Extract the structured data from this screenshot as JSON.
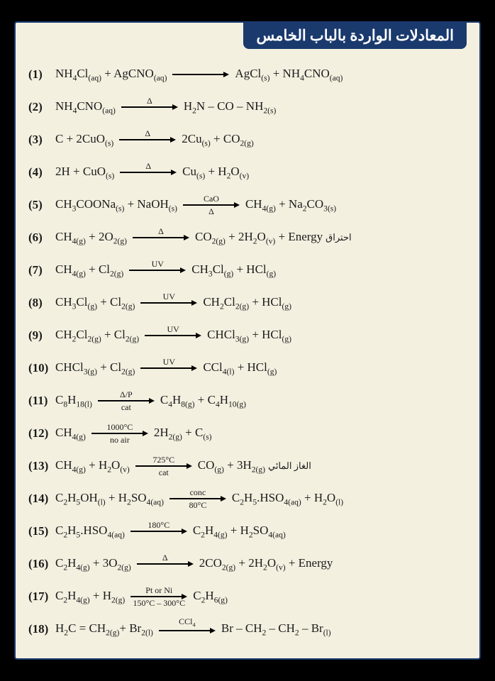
{
  "header": {
    "title": "المعادلات الواردة بالباب الخامس"
  },
  "colors": {
    "page_bg": "#f4f0e0",
    "frame": "#1a3a6e",
    "header_bg": "#1a3a6e",
    "header_fg": "#ffffff",
    "text": "#1a1a1a"
  },
  "equations": [
    {
      "n": "(1)",
      "lhs": "NH<sub>4</sub>Cl<sub>(aq)</sub> + AgCNO<sub>(aq)</sub>",
      "top": "",
      "bot": "",
      "rhs": "AgCl<sub>(s)</sub> + NH<sub>4</sub>CNO<sub>(aq)</sub>"
    },
    {
      "n": "(2)",
      "lhs": "NH<sub>4</sub>CNO<sub>(aq)</sub>",
      "top": "Δ",
      "bot": "",
      "rhs": "H<sub>2</sub>N – CO – NH<sub>2(s)</sub>"
    },
    {
      "n": "(3)",
      "lhs": "C + 2CuO<sub>(s)</sub>",
      "top": "Δ",
      "bot": "",
      "rhs": "2Cu<sub>(s)</sub> + CO<sub>2(g)</sub>"
    },
    {
      "n": "(4)",
      "lhs": "2H + CuO<sub>(s)</sub>",
      "top": "Δ",
      "bot": "",
      "rhs": "Cu<sub>(s)</sub> + H<sub>2</sub>O<sub>(v)</sub>"
    },
    {
      "n": "(5)",
      "lhs": "CH<sub>3</sub>COONa<sub>(s)</sub> + NaOH<sub>(s)</sub>",
      "top": "CaO",
      "bot": "Δ",
      "rhs": "CH<sub>4(g)</sub> + Na<sub>2</sub>CO<sub>3(s)</sub>"
    },
    {
      "n": "(6)",
      "lhs": "CH<sub>4(g)</sub> + 2O<sub>2(g)</sub>",
      "top": "Δ",
      "bot": "",
      "rhs": "CO<sub>2(g)</sub> + 2H<sub>2</sub>O<sub>(v)</sub> + Energy",
      "note": "احتراق"
    },
    {
      "n": "(7)",
      "lhs": "CH<sub>4(g)</sub> + Cl<sub>2(g)</sub>",
      "top": "UV",
      "bot": "",
      "rhs": "CH<sub>3</sub>Cl<sub>(g)</sub> + HCl<sub>(g)</sub>"
    },
    {
      "n": "(8)",
      "lhs": "CH<sub>3</sub>Cl<sub>(g)</sub> + Cl<sub>2(g)</sub>",
      "top": "UV",
      "bot": "",
      "rhs": "CH<sub>2</sub>Cl<sub>2(g)</sub> + HCl<sub>(g)</sub>"
    },
    {
      "n": "(9)",
      "lhs": "CH<sub>2</sub>Cl<sub>2(g)</sub> + Cl<sub>2(g)</sub>",
      "top": "UV",
      "bot": "",
      "rhs": "CHCl<sub>3(g)</sub> + HCl<sub>(g)</sub>"
    },
    {
      "n": "(10)",
      "lhs": "CHCl<sub>3(g)</sub> + Cl<sub>2(g)</sub>",
      "top": "UV",
      "bot": "",
      "rhs": "CCl<sub>4(l)</sub> + HCl<sub>(g)</sub>"
    },
    {
      "n": "(11)",
      "lhs": "C<sub>8</sub>H<sub>18(l)</sub>",
      "top": "Δ/P",
      "bot": "cat",
      "rhs": "C<sub>4</sub>H<sub>8(g)</sub> + C<sub>4</sub>H<sub>10(g)</sub>"
    },
    {
      "n": "(12)",
      "lhs": "CH<sub>4(g)</sub>",
      "top": "1000°C",
      "bot": "no air",
      "rhs": "2H<sub>2(g)</sub> + C<sub>(s)</sub>"
    },
    {
      "n": "(13)",
      "lhs": "CH<sub>4(g)</sub> + H<sub>2</sub>O<sub>(v)</sub>",
      "top": "725°C",
      "bot": "cat",
      "rhs": "CO<sub>(g)</sub> + 3H<sub>2(g)</sub>",
      "note": "الغاز المائي"
    },
    {
      "n": "(14)",
      "lhs": "C<sub>2</sub>H<sub>5</sub>OH<sub>(l)</sub> + H<sub>2</sub>SO<sub>4(aq)</sub>",
      "top": "conc",
      "bot": "80°C",
      "rhs": "C<sub>2</sub>H<sub>5</sub>.HSO<sub>4(aq)</sub> + H<sub>2</sub>O<sub>(l)</sub>"
    },
    {
      "n": "(15)",
      "lhs": "C<sub>2</sub>H<sub>5</sub>.HSO<sub>4(aq)</sub>",
      "top": "180°C",
      "bot": "",
      "rhs": "C<sub>2</sub>H<sub>4(g)</sub> + H<sub>2</sub>SO<sub>4(aq)</sub>"
    },
    {
      "n": "(16)",
      "lhs": "C<sub>2</sub>H<sub>4(g)</sub> + 3O<sub>2(g)</sub>",
      "top": "Δ",
      "bot": "",
      "rhs": "2CO<sub>2(g)</sub> + 2H<sub>2</sub>O<sub>(v)</sub> + Energy"
    },
    {
      "n": "(17)",
      "lhs": "C<sub>2</sub>H<sub>4(g)</sub> + H<sub>2(g)</sub>",
      "top": "Pt or Ni",
      "bot": "150°C – 300°C",
      "rhs": "C<sub>2</sub>H<sub>6(g)</sub>"
    },
    {
      "n": "(18)",
      "lhs": "H<sub>2</sub>C = CH<sub>2(g)</sub>+ Br<sub>2(l)</sub>",
      "top": "CCl<sub>4</sub>",
      "bot": "",
      "rhs": "Br – CH<sub>2</sub> – CH<sub>2</sub> – Br<sub>(l)</sub>"
    }
  ]
}
